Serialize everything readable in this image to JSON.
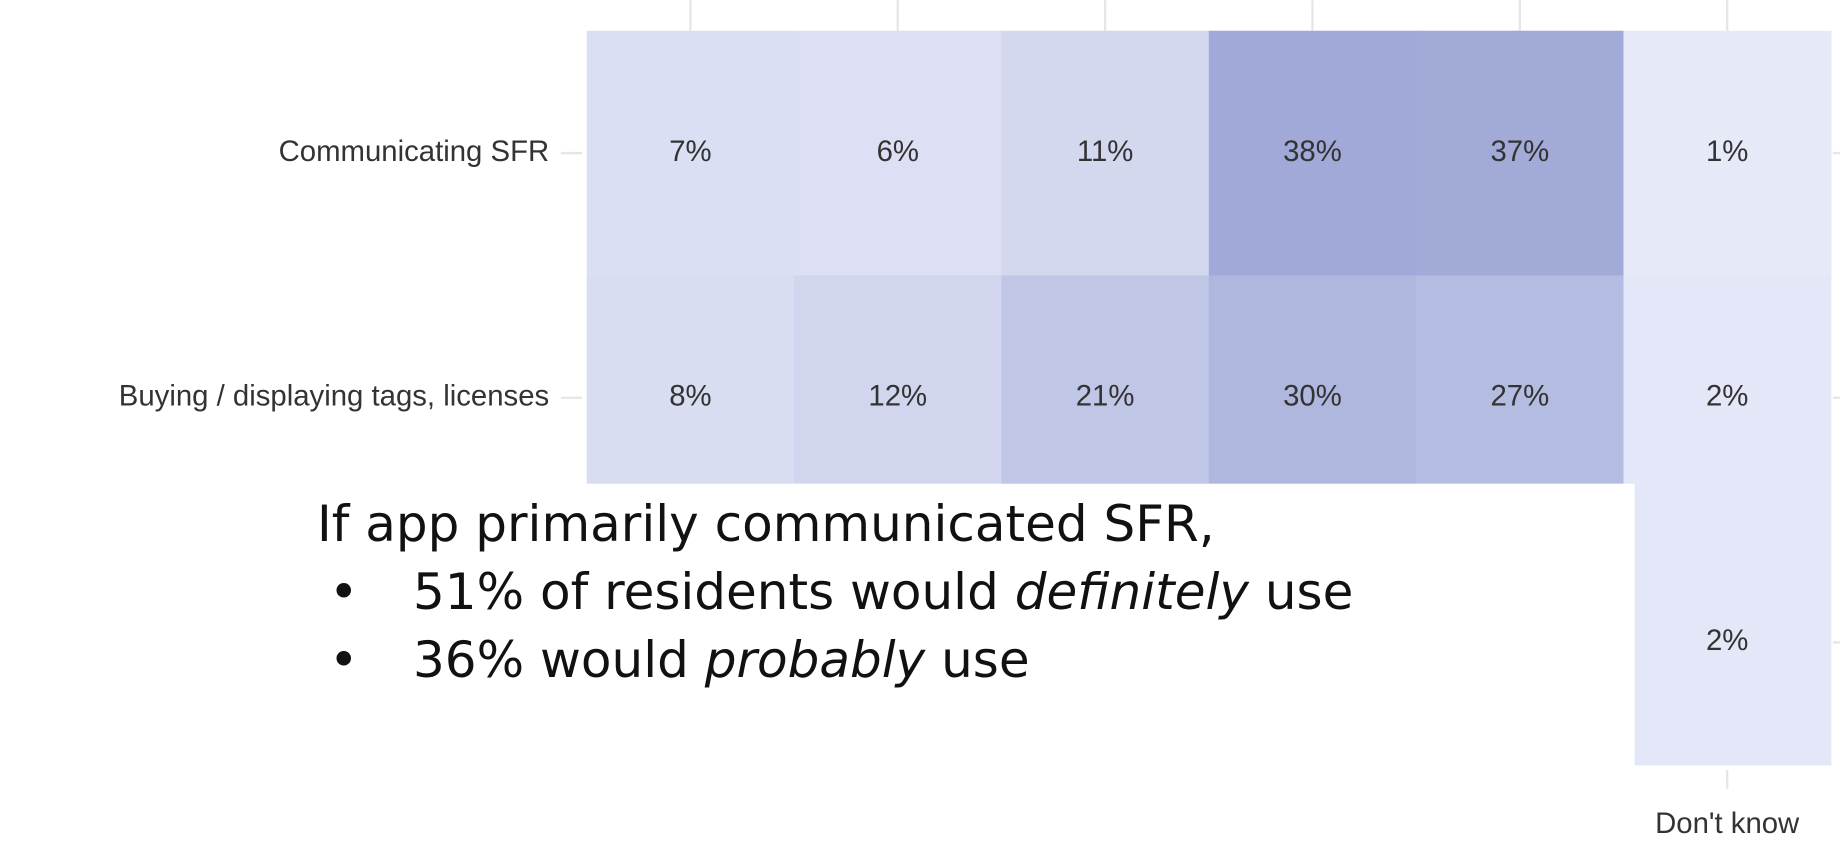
{
  "chart_data": {
    "type": "heatmap",
    "rows": [
      "Communicating SFR",
      "Buying / displaying tags, licenses",
      null
    ],
    "columns": [
      null,
      null,
      null,
      null,
      null,
      "Don't know"
    ],
    "values": [
      [
        7,
        6,
        11,
        38,
        37,
        1
      ],
      [
        8,
        12,
        21,
        30,
        27,
        2
      ],
      [
        null,
        null,
        null,
        null,
        null,
        2
      ]
    ],
    "value_labels": [
      [
        "7%",
        "6%",
        "11%",
        "38%",
        "37%",
        "1%"
      ],
      [
        "8%",
        "12%",
        "21%",
        "30%",
        "27%",
        "2%"
      ],
      [
        null,
        null,
        null,
        null,
        null,
        "2%"
      ]
    ],
    "colors": [
      "#e6e9f8",
      "#a0a9d7"
    ]
  },
  "callout": {
    "heading": "If app primarily communicated SFR,",
    "bullets": [
      {
        "before": "51% of residents would ",
        "em": "definitely",
        "after": " use"
      },
      {
        "before": "36% would ",
        "em": "probably",
        "after": " use"
      }
    ]
  }
}
